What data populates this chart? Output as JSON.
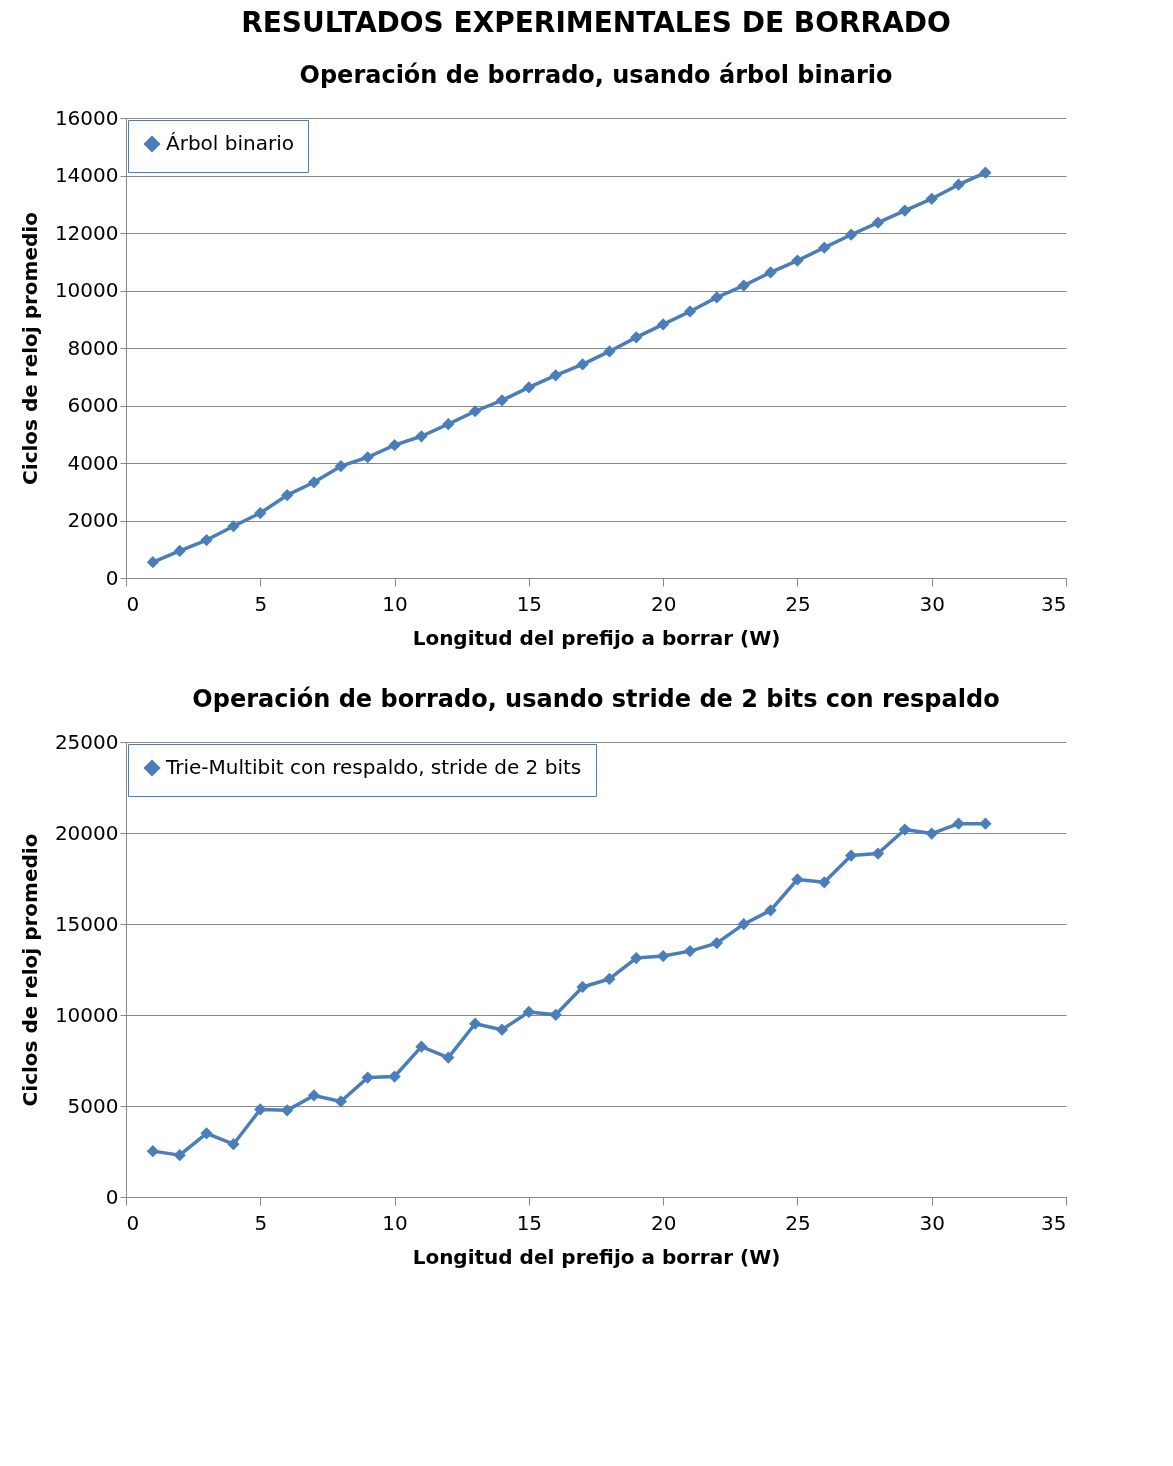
{
  "chart_data": [
    {
      "type": "line",
      "title": "RESULTADOS EXPERIMENTALES DE BORRADO",
      "subtitle": "Operación de borrado, usando árbol binario",
      "xlabel": "Longitud del prefijo a borrar (W)",
      "ylabel": "Ciclos de reloj promedio",
      "x": [
        1,
        2,
        3,
        4,
        5,
        6,
        7,
        8,
        9,
        10,
        11,
        12,
        13,
        14,
        15,
        16,
        17,
        18,
        19,
        20,
        21,
        22,
        23,
        24,
        25,
        26,
        27,
        28,
        29,
        30,
        31,
        32
      ],
      "series": [
        {
          "name": "Árbol binario",
          "color": "#4a7ebb",
          "values": [
            550,
            940,
            1320,
            1800,
            2260,
            2880,
            3330,
            3890,
            4200,
            4620,
            4930,
            5350,
            5800,
            6180,
            6630,
            7050,
            7430,
            7880,
            8370,
            8820,
            9270,
            9760,
            10170,
            10630,
            11040,
            11490,
            11940,
            12360,
            12780,
            13190,
            13680,
            14100
          ]
        }
      ],
      "xlim": [
        0,
        35
      ],
      "xticks": [
        0,
        5,
        10,
        15,
        20,
        25,
        30,
        35
      ],
      "ylim": [
        0,
        16000
      ],
      "yticks": [
        0,
        2000,
        4000,
        6000,
        8000,
        10000,
        12000,
        14000,
        16000
      ],
      "grid": "y",
      "legend": "top left",
      "marker": "diamond",
      "line_style": "solid"
    },
    {
      "type": "line",
      "title": "Operación de borrado, usando stride de 2 bits con respaldo",
      "xlabel": "Longitud del prefijo a borrar (W)",
      "ylabel": "Ciclos de reloj promedio",
      "x": [
        1,
        2,
        3,
        4,
        5,
        6,
        7,
        8,
        9,
        10,
        11,
        12,
        13,
        14,
        15,
        16,
        17,
        18,
        19,
        20,
        21,
        22,
        23,
        24,
        25,
        26,
        27,
        28,
        29,
        30,
        31,
        32
      ],
      "series": [
        {
          "name": "Trie-Multibit con respaldo, stride de 2 bits",
          "color": "#4a7ebb",
          "values": [
            2520,
            2300,
            3500,
            2900,
            4810,
            4760,
            5580,
            5250,
            6560,
            6620,
            8260,
            7660,
            9520,
            9190,
            10170,
            10010,
            11540,
            11980,
            13130,
            13240,
            13510,
            13950,
            14990,
            15750,
            17450,
            17290,
            18760,
            18870,
            20190,
            19970,
            20510,
            20510
          ]
        }
      ],
      "xlim": [
        0,
        35
      ],
      "xticks": [
        0,
        5,
        10,
        15,
        20,
        25,
        30,
        35
      ],
      "ylim": [
        0,
        25000
      ],
      "yticks": [
        0,
        5000,
        10000,
        15000,
        20000,
        25000
      ],
      "grid": "y",
      "legend": "top left",
      "marker": "diamond",
      "line_style": "solid"
    }
  ]
}
